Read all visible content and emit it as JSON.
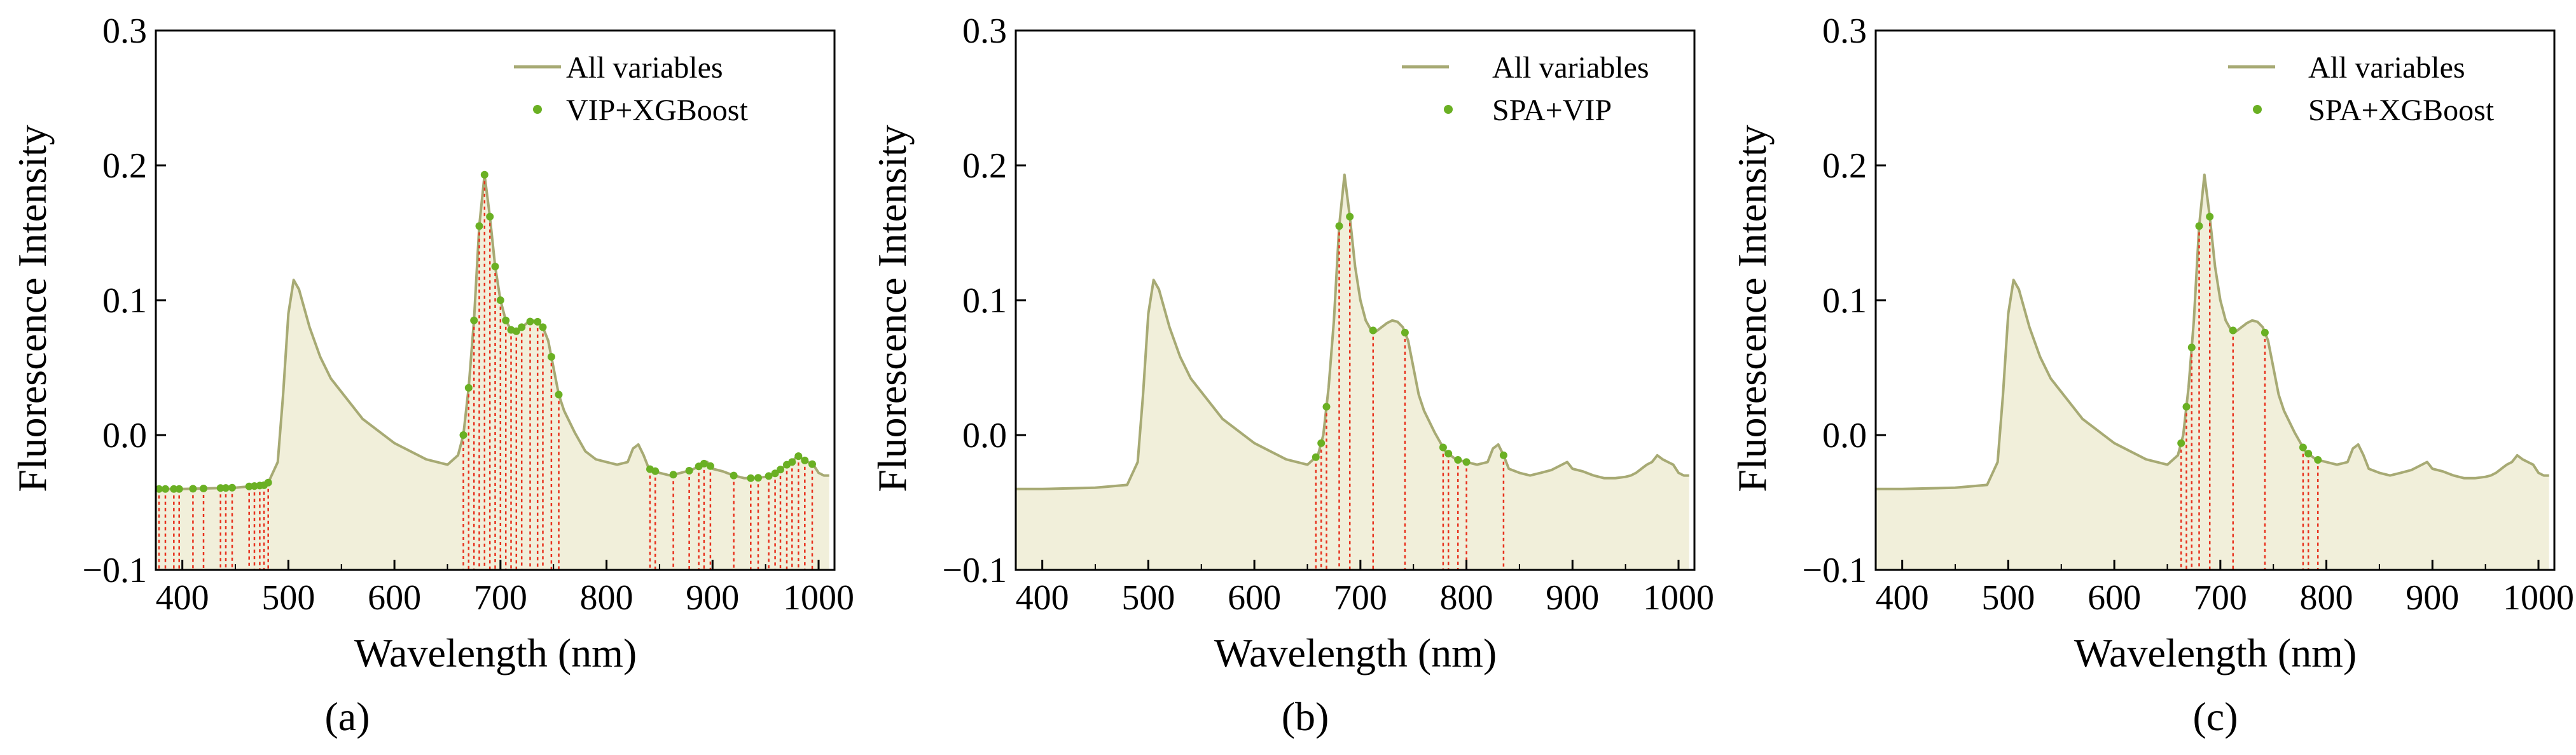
{
  "chart_data": [
    {
      "type": "line",
      "panel_label": "(a)",
      "xlabel": "Wavelength (nm)",
      "ylabel": "Fluorescence Intensity",
      "xlim": [
        375,
        1015
      ],
      "ylim": [
        -0.1,
        0.3
      ],
      "xticks": [
        "400",
        "500",
        "600",
        "700",
        "800",
        "900",
        "1000"
      ],
      "yticks": [
        "−0.1",
        "0.0",
        "0.1",
        "0.2",
        "0.3"
      ],
      "legend_position": "top-right",
      "legend": [
        "All variables",
        "VIP+XGBoost"
      ],
      "selected_wavelengths": [
        378,
        384,
        392,
        397,
        410,
        420,
        436,
        441,
        447,
        463,
        468,
        473,
        477,
        481,
        665,
        670,
        675,
        680,
        685,
        690,
        695,
        700,
        705,
        710,
        715,
        720,
        728,
        735,
        740,
        748,
        755,
        841,
        846,
        863,
        878,
        887,
        892,
        898,
        920,
        936,
        943,
        953,
        959,
        964,
        970,
        975,
        981,
        987,
        994
      ]
    },
    {
      "type": "line",
      "panel_label": "(b)",
      "xlabel": "Wavelength (nm)",
      "ylabel": "Fluorescence Intensity",
      "xlim": [
        375,
        1015
      ],
      "ylim": [
        -0.1,
        0.3
      ],
      "xticks": [
        "400",
        "500",
        "600",
        "700",
        "800",
        "900",
        "1000"
      ],
      "yticks": [
        "−0.1",
        "0.0",
        "0.1",
        "0.2",
        "0.3"
      ],
      "legend_position": "top-right",
      "legend": [
        "All variables",
        "SPA+VIP"
      ],
      "selected_wavelengths": [
        658,
        663,
        668,
        680,
        690,
        712,
        742,
        778,
        783,
        792,
        800,
        835
      ]
    },
    {
      "type": "line",
      "panel_label": "(c)",
      "xlabel": "Wavelength (nm)",
      "ylabel": "Fluorescence Intensity",
      "xlim": [
        375,
        1015
      ],
      "ylim": [
        -0.1,
        0.3
      ],
      "xticks": [
        "400",
        "500",
        "600",
        "700",
        "800",
        "900",
        "1000"
      ],
      "yticks": [
        "−0.1",
        "0.0",
        "0.1",
        "0.2",
        "0.3"
      ],
      "legend_position": "top-right",
      "legend": [
        "All variables",
        "SPA+XGBoost"
      ],
      "selected_wavelengths": [
        663,
        668,
        673,
        680,
        690,
        712,
        742,
        778,
        783,
        792
      ]
    }
  ],
  "spectrum": {
    "name": "All variables",
    "x": [
      375,
      400,
      450,
      480,
      490,
      495,
      500,
      505,
      510,
      520,
      530,
      540,
      550,
      570,
      600,
      630,
      650,
      660,
      665,
      670,
      675,
      680,
      685,
      690,
      695,
      700,
      705,
      710,
      715,
      720,
      725,
      730,
      735,
      740,
      745,
      750,
      755,
      760,
      770,
      780,
      790,
      800,
      810,
      820,
      825,
      830,
      835,
      840,
      850,
      860,
      870,
      880,
      890,
      895,
      900,
      910,
      920,
      930,
      940,
      950,
      955,
      960,
      965,
      970,
      975,
      980,
      985,
      990,
      995,
      1000,
      1005,
      1010
    ],
    "y": [
      -0.04,
      -0.04,
      -0.039,
      -0.037,
      -0.02,
      0.03,
      0.09,
      0.115,
      0.108,
      0.08,
      0.058,
      0.042,
      0.032,
      0.012,
      -0.006,
      -0.018,
      -0.022,
      -0.015,
      0.0,
      0.035,
      0.085,
      0.155,
      0.193,
      0.162,
      0.125,
      0.1,
      0.085,
      0.078,
      0.077,
      0.08,
      0.083,
      0.085,
      0.084,
      0.08,
      0.07,
      0.05,
      0.03,
      0.018,
      0.002,
      -0.012,
      -0.018,
      -0.02,
      -0.022,
      -0.02,
      -0.01,
      -0.007,
      -0.015,
      -0.025,
      -0.028,
      -0.03,
      -0.028,
      -0.026,
      -0.022,
      -0.02,
      -0.025,
      -0.027,
      -0.03,
      -0.032,
      -0.032,
      -0.031,
      -0.03,
      -0.028,
      -0.025,
      -0.022,
      -0.02,
      -0.015,
      -0.018,
      -0.02,
      -0.022,
      -0.028,
      -0.03,
      -0.03
    ],
    "line_color": "#a7aa74",
    "fill_color": "#f1efda",
    "marker_color": "#6ab023",
    "dropline_color": "#e8321e"
  }
}
